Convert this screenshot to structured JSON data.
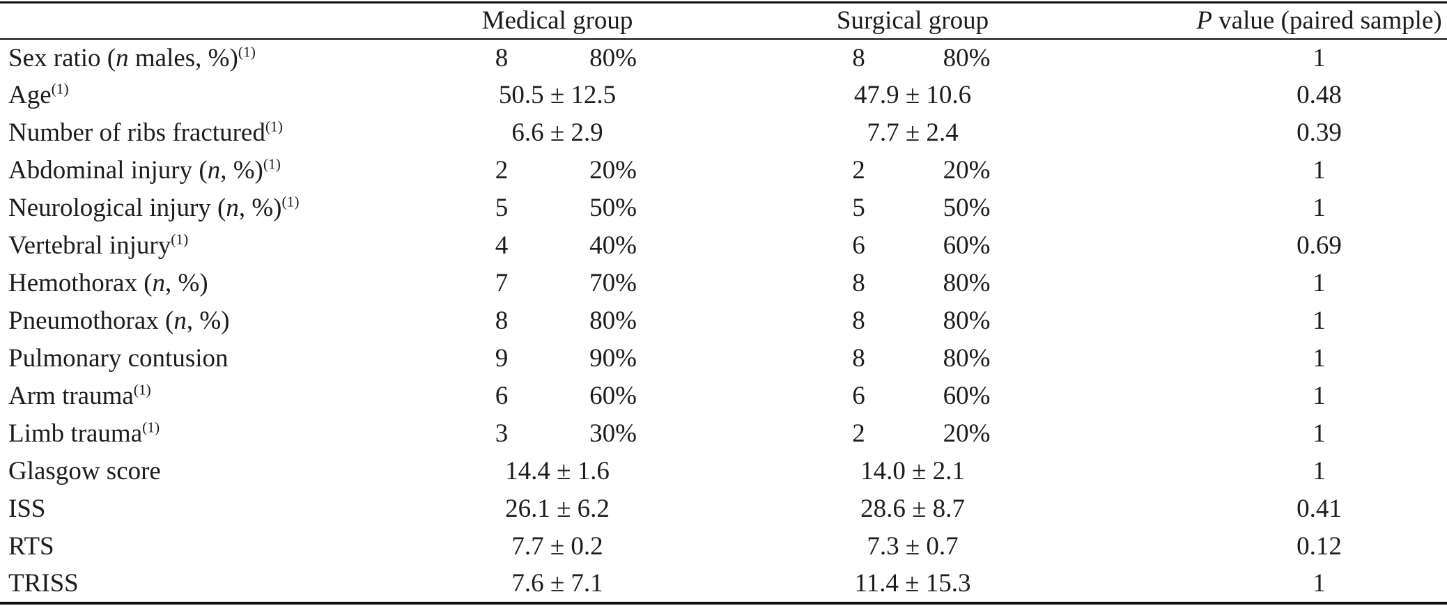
{
  "page": {
    "background": "#ffffff",
    "text_color": "#1c1c1c",
    "rule_color": "#0d0d0d"
  },
  "table": {
    "header": {
      "label": [],
      "medical": [
        {
          "t": "Medical group"
        }
      ],
      "surgical": [
        {
          "t": "Surgical group"
        }
      ],
      "pvalue": [
        {
          "t": "P",
          "s": "i"
        },
        {
          "t": " value (paired sample)"
        }
      ]
    },
    "rows": [
      {
        "id": "sex-ratio",
        "label": [
          {
            "t": "Sex ratio ("
          },
          {
            "t": "n",
            "s": "i"
          },
          {
            "t": " males, %)"
          },
          {
            "t": "(1)",
            "s": "sup"
          }
        ],
        "type": "count",
        "medical": {
          "n": "8",
          "pct": "80%"
        },
        "surgical": {
          "n": "8",
          "pct": "80%"
        },
        "p": "1"
      },
      {
        "id": "age",
        "label": [
          {
            "t": "Age"
          },
          {
            "t": "(1)",
            "s": "sup"
          }
        ],
        "type": "mean",
        "medical": {
          "value": "50.5 ± 12.5"
        },
        "surgical": {
          "value": "47.9 ± 10.6"
        },
        "p": "0.48"
      },
      {
        "id": "ribs-fractured",
        "label": [
          {
            "t": "Number of ribs fractured"
          },
          {
            "t": "(1)",
            "s": "sup"
          }
        ],
        "type": "mean",
        "medical": {
          "value": "6.6 ± 2.9"
        },
        "surgical": {
          "value": "7.7 ± 2.4"
        },
        "p": "0.39"
      },
      {
        "id": "abdominal-injury",
        "label": [
          {
            "t": "Abdominal injury ("
          },
          {
            "t": "n",
            "s": "i"
          },
          {
            "t": ", %)"
          },
          {
            "t": "(1)",
            "s": "sup"
          }
        ],
        "type": "count",
        "medical": {
          "n": "2",
          "pct": "20%"
        },
        "surgical": {
          "n": "2",
          "pct": "20%"
        },
        "p": "1"
      },
      {
        "id": "neurological-injury",
        "label": [
          {
            "t": "Neurological injury ("
          },
          {
            "t": "n",
            "s": "i"
          },
          {
            "t": ", %)"
          },
          {
            "t": "(1)",
            "s": "sup"
          }
        ],
        "type": "count",
        "medical": {
          "n": "5",
          "pct": "50%"
        },
        "surgical": {
          "n": "5",
          "pct": "50%"
        },
        "p": "1"
      },
      {
        "id": "vertebral-injury",
        "label": [
          {
            "t": "Vertebral injury"
          },
          {
            "t": "(1)",
            "s": "sup"
          }
        ],
        "type": "count",
        "medical": {
          "n": "4",
          "pct": "40%"
        },
        "surgical": {
          "n": "6",
          "pct": "60%"
        },
        "p": "0.69"
      },
      {
        "id": "hemothorax",
        "label": [
          {
            "t": "Hemothorax ("
          },
          {
            "t": "n",
            "s": "i"
          },
          {
            "t": ", %)"
          }
        ],
        "type": "count",
        "medical": {
          "n": "7",
          "pct": "70%"
        },
        "surgical": {
          "n": "8",
          "pct": "80%"
        },
        "p": "1"
      },
      {
        "id": "pneumothorax",
        "label": [
          {
            "t": "Pneumothorax ("
          },
          {
            "t": "n",
            "s": "i"
          },
          {
            "t": ", %)"
          }
        ],
        "type": "count",
        "medical": {
          "n": "8",
          "pct": "80%"
        },
        "surgical": {
          "n": "8",
          "pct": "80%"
        },
        "p": "1"
      },
      {
        "id": "pulmonary-contusion",
        "label": [
          {
            "t": "Pulmonary contusion"
          }
        ],
        "type": "count",
        "medical": {
          "n": "9",
          "pct": "90%"
        },
        "surgical": {
          "n": "8",
          "pct": "80%"
        },
        "p": "1"
      },
      {
        "id": "arm-trauma",
        "label": [
          {
            "t": "Arm trauma"
          },
          {
            "t": "(1)",
            "s": "sup"
          }
        ],
        "type": "count",
        "medical": {
          "n": "6",
          "pct": "60%"
        },
        "surgical": {
          "n": "6",
          "pct": "60%"
        },
        "p": "1"
      },
      {
        "id": "limb-trauma",
        "label": [
          {
            "t": "Limb trauma"
          },
          {
            "t": "(1)",
            "s": "sup"
          }
        ],
        "type": "count",
        "medical": {
          "n": "3",
          "pct": "30%"
        },
        "surgical": {
          "n": "2",
          "pct": "20%"
        },
        "p": "1"
      },
      {
        "id": "glasgow-score",
        "label": [
          {
            "t": "Glasgow score"
          }
        ],
        "type": "mean",
        "medical": {
          "value": "14.4 ± 1.6"
        },
        "surgical": {
          "value": "14.0 ± 2.1"
        },
        "p": "1"
      },
      {
        "id": "iss",
        "label": [
          {
            "t": "ISS"
          }
        ],
        "type": "mean",
        "medical": {
          "value": "26.1 ± 6.2"
        },
        "surgical": {
          "value": "28.6 ± 8.7"
        },
        "p": "0.41"
      },
      {
        "id": "rts",
        "label": [
          {
            "t": "RTS"
          }
        ],
        "type": "mean",
        "medical": {
          "value": "7.7 ± 0.2"
        },
        "surgical": {
          "value": "7.3 ± 0.7"
        },
        "p": "0.12"
      },
      {
        "id": "triss",
        "label": [
          {
            "t": "TRISS"
          }
        ],
        "type": "mean",
        "medical": {
          "value": "7.6 ± 7.1"
        },
        "surgical": {
          "value": "11.4 ± 15.3"
        },
        "p": "1"
      }
    ]
  }
}
